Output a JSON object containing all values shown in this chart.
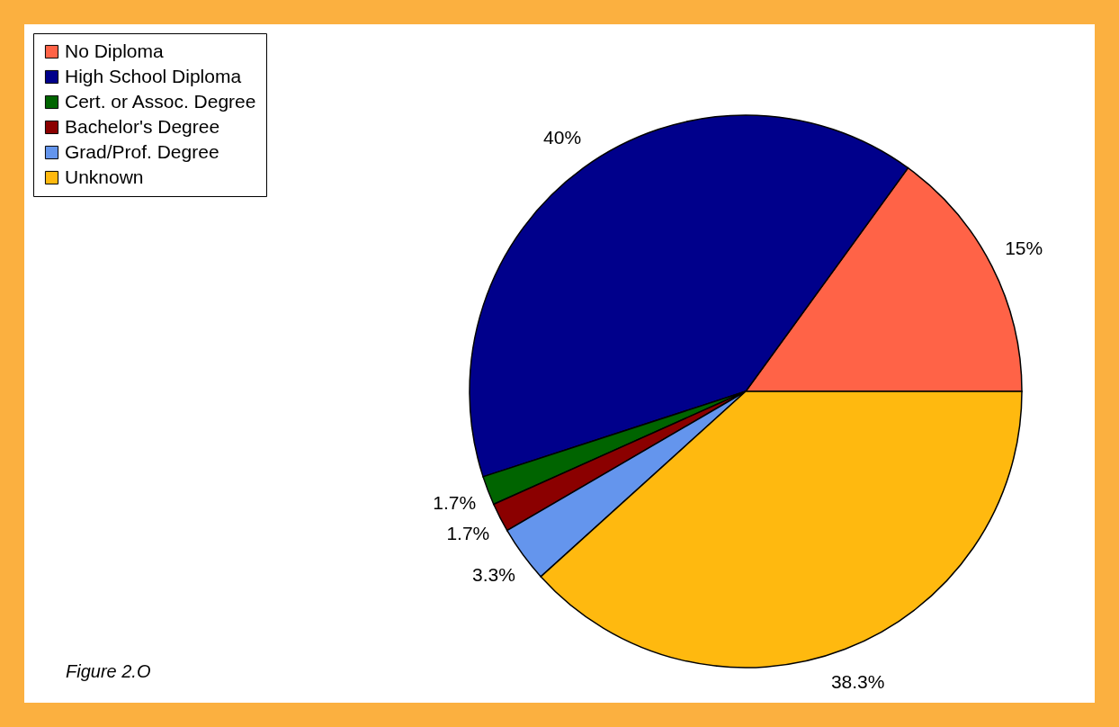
{
  "chart_data": {
    "type": "pie",
    "categories": [
      "No Diploma",
      "High School Diploma",
      "Cert. or Assoc. Degree",
      "Bachelor's Degree",
      "Grad/Prof. Degree",
      "Unknown"
    ],
    "values": [
      15,
      40,
      1.7,
      1.7,
      3.3,
      38.3
    ],
    "value_labels": [
      "15%",
      "40%",
      "1.7%",
      "1.7%",
      "3.3%",
      "38.3%"
    ],
    "colors": [
      "#ff6347",
      "#00008b",
      "#006400",
      "#8b0000",
      "#6495ed",
      "#ffb90f"
    ],
    "legend": "top left",
    "annotations": [
      "Figure 2.O"
    ]
  }
}
